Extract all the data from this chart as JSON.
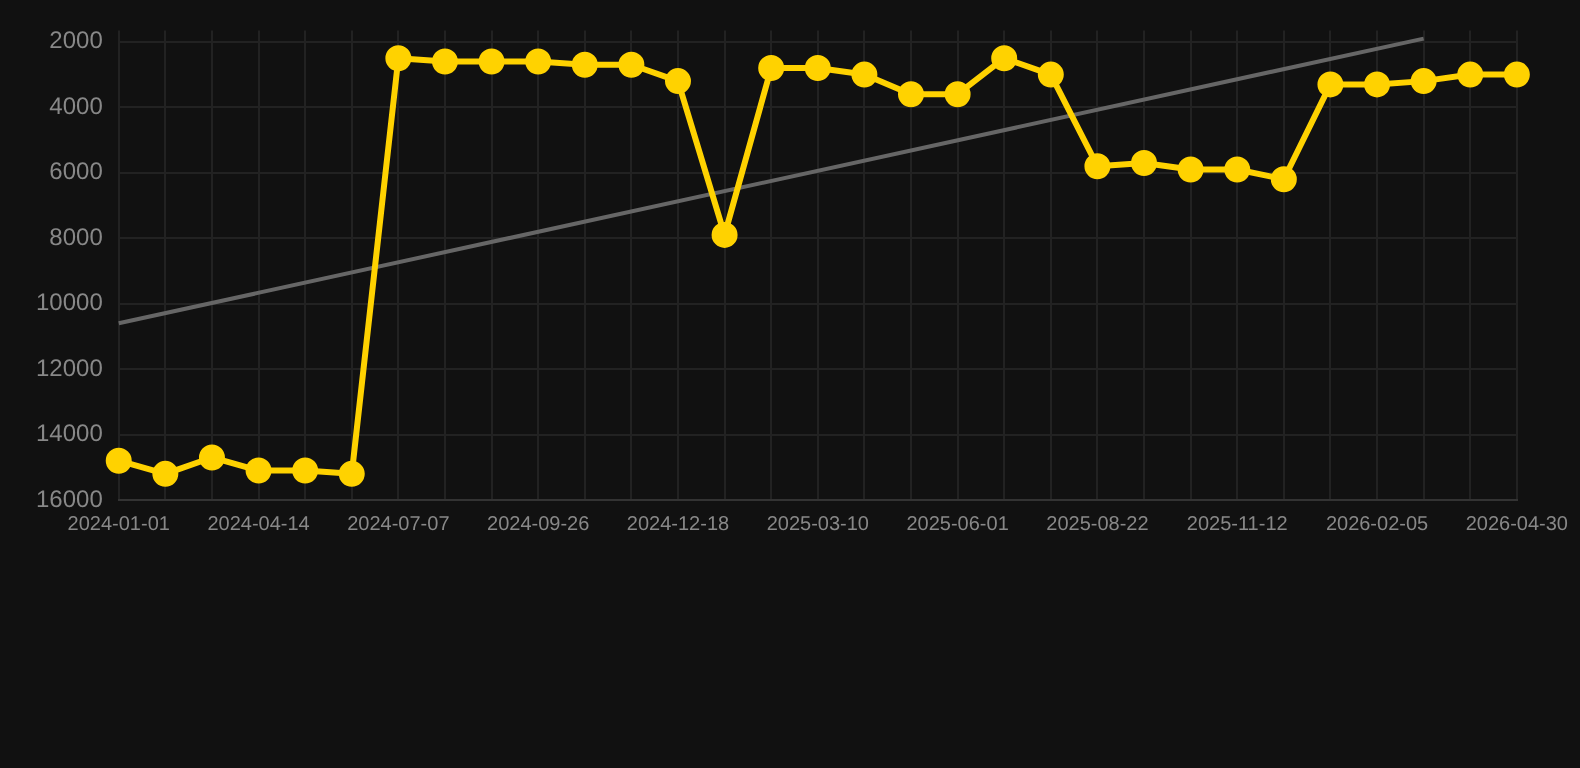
{
  "chart_data": {
    "type": "line",
    "categories": [
      "2024-01-01",
      null,
      null,
      "2024-04-14",
      null,
      null,
      "2024-07-07",
      null,
      null,
      "2024-09-26",
      null,
      null,
      "2024-12-18",
      null,
      null,
      "2025-03-10",
      null,
      null,
      "2025-06-01",
      null,
      null,
      "2025-08-22",
      null,
      null,
      "2025-11-12",
      null,
      null,
      "2026-02-05",
      null,
      null,
      "2026-04-30"
    ],
    "series": [
      {
        "color": "#ffd200",
        "marker": "circle",
        "values": [
          14800,
          15200,
          14700,
          15100,
          15100,
          15200,
          2500,
          2600,
          2600,
          2600,
          2700,
          2700,
          3200,
          7900,
          2800,
          2800,
          3000,
          3600,
          3600,
          2500,
          3000,
          5800,
          5700,
          5900,
          5900,
          6200,
          3300,
          3300,
          3200,
          3000,
          3000
        ]
      },
      {
        "type": "line",
        "color": "#666666",
        "marker": "none",
        "values": [
          10600,
          null,
          null,
          null,
          null,
          null,
          null,
          null,
          null,
          null,
          null,
          null,
          null,
          null,
          null,
          null,
          null,
          null,
          null,
          null,
          null,
          null,
          null,
          null,
          null,
          null,
          null,
          null,
          1900,
          null,
          null
        ]
      }
    ],
    "ylim": [
      16000,
      1650
    ],
    "yticks": [
      2000,
      4000,
      6000,
      8000,
      10000,
      12000,
      14000,
      16000
    ],
    "grid": true,
    "legend": false
  }
}
